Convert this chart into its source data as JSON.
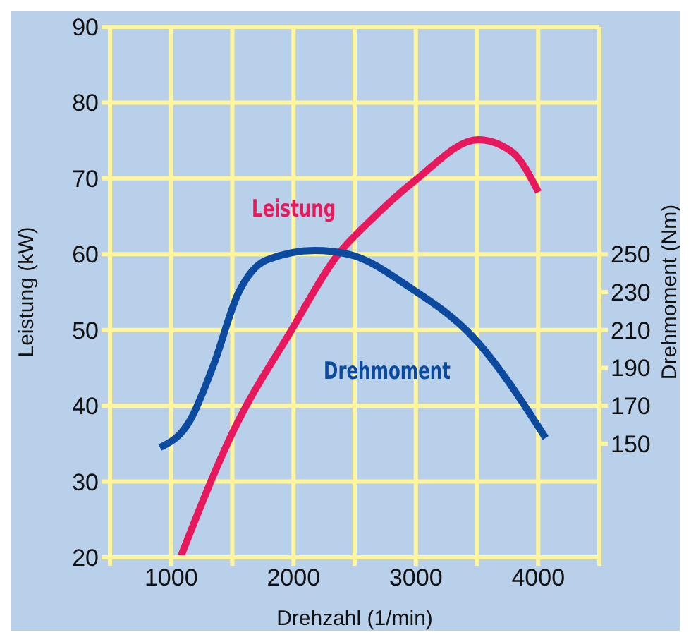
{
  "chart_data": {
    "type": "line",
    "xlabel": "Drehzahl (1/min)",
    "ylabel": "Leistung (kW)",
    "y2label": "Drehmoment (Nm)",
    "xlim": [
      500,
      4500
    ],
    "xticks": [
      {
        "value": 500,
        "label": null
      },
      1000,
      {
        "value": 1500,
        "label": null
      },
      2000,
      {
        "value": 2500,
        "label": null
      },
      3000,
      {
        "value": 3500,
        "label": null
      },
      4000,
      {
        "value": 4500,
        "label": null
      }
    ],
    "ylim": [
      20,
      90
    ],
    "yticks": [
      20,
      30,
      40,
      50,
      60,
      70,
      80,
      90
    ],
    "y2lim": [
      90,
      370
    ],
    "y2ticks": [
      150,
      170,
      190,
      210,
      230,
      250
    ],
    "grid": true,
    "legend": false,
    "marker": "none",
    "line_style": "solid",
    "series": [
      {
        "name": "Leistung",
        "color": "#e8185c",
        "x": [
          1081,
          1506,
          1977,
          2371,
          2607,
          3000,
          3510,
          3786,
          4002
        ],
        "values": [
          20.2,
          36.6,
          49.8,
          60.1,
          64.1,
          69.8,
          75.1,
          73.5,
          68.2
        ]
      },
      {
        "name": "Drehmoment",
        "color": "#0b4a9e",
        "axis": "y2",
        "x": [
          909,
          1152,
          1349,
          1546,
          1782,
          2174,
          2449,
          2961,
          3471,
          4061
        ],
        "values": [
          148,
          162,
          192,
          229,
          247,
          252,
          250,
          232,
          206,
          153
        ]
      }
    ]
  }
}
